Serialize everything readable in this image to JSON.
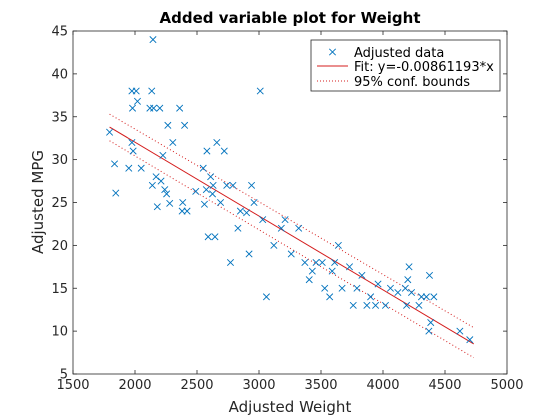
{
  "chart_data": {
    "type": "scatter",
    "title": "Added variable plot for Weight",
    "xlabel": "Adjusted Weight",
    "ylabel": "Adjusted MPG",
    "xlim": [
      1500,
      5000
    ],
    "ylim": [
      5,
      45
    ],
    "xticks": [
      1500,
      2000,
      2500,
      3000,
      3500,
      4000,
      4500,
      5000
    ],
    "yticks": [
      5,
      10,
      15,
      20,
      25,
      30,
      35,
      40,
      45
    ],
    "grid": false,
    "legend_position": "top-right",
    "colors": {
      "data": "#0072BD",
      "fit": "#D41C1C",
      "bounds": "#D41C1C"
    },
    "series": [
      {
        "name": "Adjusted data",
        "marker": "x",
        "points": [
          [
            1795,
            33.2
          ],
          [
            1835,
            29.5
          ],
          [
            1845,
            26.1
          ],
          [
            1950,
            29.0
          ],
          [
            1975,
            32.0
          ],
          [
            1975,
            38.0
          ],
          [
            1980,
            36.0
          ],
          [
            1985,
            31.0
          ],
          [
            2010,
            38.0
          ],
          [
            2020,
            36.8
          ],
          [
            2050,
            29.0
          ],
          [
            2120,
            36.0
          ],
          [
            2135,
            38.0
          ],
          [
            2140,
            27.0
          ],
          [
            2145,
            44.0
          ],
          [
            2150,
            36.0
          ],
          [
            2170,
            28.0
          ],
          [
            2180,
            24.5
          ],
          [
            2200,
            36.0
          ],
          [
            2210,
            27.5
          ],
          [
            2225,
            30.5
          ],
          [
            2240,
            26.5
          ],
          [
            2255,
            26.0
          ],
          [
            2265,
            34.0
          ],
          [
            2280,
            24.9
          ],
          [
            2305,
            32.0
          ],
          [
            2360,
            36.0
          ],
          [
            2380,
            24.0
          ],
          [
            2385,
            25.0
          ],
          [
            2400,
            34.0
          ],
          [
            2420,
            24.0
          ],
          [
            2490,
            26.3
          ],
          [
            2550,
            29.0
          ],
          [
            2560,
            24.8
          ],
          [
            2575,
            26.5
          ],
          [
            2580,
            31.0
          ],
          [
            2590,
            21.0
          ],
          [
            2610,
            28.0
          ],
          [
            2625,
            26.0
          ],
          [
            2630,
            27.0
          ],
          [
            2645,
            21.0
          ],
          [
            2660,
            32.0
          ],
          [
            2690,
            25.0
          ],
          [
            2720,
            31.0
          ],
          [
            2740,
            27.0
          ],
          [
            2770,
            18.0
          ],
          [
            2790,
            27.0
          ],
          [
            2830,
            22.0
          ],
          [
            2850,
            24.0
          ],
          [
            2900,
            23.8
          ],
          [
            2920,
            19.0
          ],
          [
            2940,
            27.0
          ],
          [
            2960,
            25.0
          ],
          [
            3010,
            38.0
          ],
          [
            3030,
            23.0
          ],
          [
            3060,
            14.0
          ],
          [
            3120,
            20.0
          ],
          [
            3180,
            22.0
          ],
          [
            3210,
            23.0
          ],
          [
            3260,
            19.0
          ],
          [
            3320,
            22.0
          ],
          [
            3370,
            18.0
          ],
          [
            3405,
            16.0
          ],
          [
            3430,
            17.0
          ],
          [
            3460,
            18.0
          ],
          [
            3510,
            18.0
          ],
          [
            3530,
            15.0
          ],
          [
            3570,
            14.0
          ],
          [
            3590,
            17.0
          ],
          [
            3610,
            18.0
          ],
          [
            3640,
            20.0
          ],
          [
            3670,
            15.0
          ],
          [
            3730,
            17.5
          ],
          [
            3760,
            13.0
          ],
          [
            3790,
            15.0
          ],
          [
            3830,
            16.5
          ],
          [
            3870,
            13.0
          ],
          [
            3900,
            14.0
          ],
          [
            3940,
            13.0
          ],
          [
            3960,
            15.5
          ],
          [
            4020,
            13.0
          ],
          [
            4060,
            15.0
          ],
          [
            4120,
            14.5
          ],
          [
            4180,
            15.0
          ],
          [
            4190,
            13.0
          ],
          [
            4200,
            16.0
          ],
          [
            4210,
            17.5
          ],
          [
            4230,
            14.5
          ],
          [
            4290,
            13.0
          ],
          [
            4310,
            14.0
          ],
          [
            4350,
            14.0
          ],
          [
            4370,
            10.0
          ],
          [
            4375,
            16.5
          ],
          [
            4385,
            11.0
          ],
          [
            4410,
            14.0
          ],
          [
            4620,
            10.0
          ],
          [
            4700,
            9.0
          ]
        ]
      },
      {
        "name": "Fit: y=-0.00861193*x",
        "style": "solid",
        "line": [
          [
            1795,
            33.8
          ],
          [
            4732,
            8.5
          ]
        ]
      },
      {
        "name": "95% conf. bounds",
        "style": "dotted",
        "upper": [
          [
            1795,
            35.3
          ],
          [
            4732,
            10.4
          ]
        ],
        "lower": [
          [
            1795,
            32.2
          ],
          [
            4732,
            6.9
          ]
        ]
      }
    ]
  }
}
